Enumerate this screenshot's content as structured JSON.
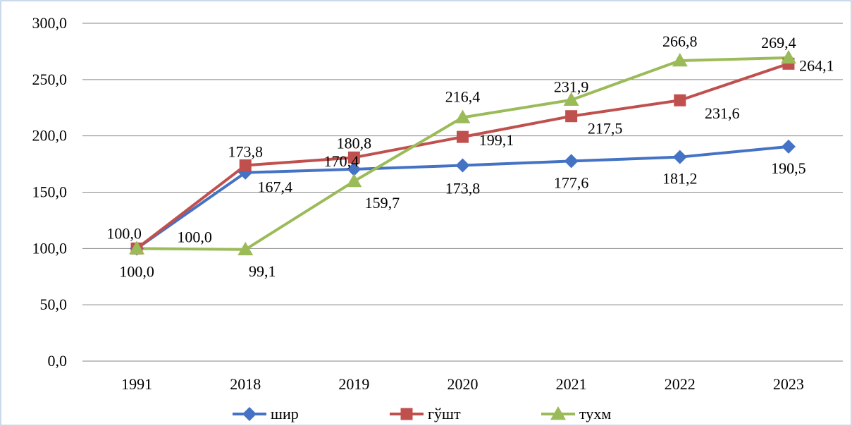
{
  "chart_data": {
    "type": "line",
    "title": "",
    "xlabel": "",
    "ylabel": "",
    "categories": [
      "1991",
      "2018",
      "2019",
      "2020",
      "2021",
      "2022",
      "2023"
    ],
    "ylim": [
      0,
      300
    ],
    "yticks": [
      "0,0",
      "50,0",
      "100,0",
      "150,0",
      "200,0",
      "250,0",
      "300,0"
    ],
    "grid": true,
    "legend_position": "bottom",
    "series": [
      {
        "name": "шир",
        "color": "#4472C4",
        "marker": "diamond",
        "values": [
          100.0,
          167.4,
          170.4,
          173.8,
          177.6,
          181.2,
          190.5
        ],
        "labels": [
          "100,0",
          "167,4",
          "170,4",
          "173,8",
          "177,6",
          "181,2",
          "190,5"
        ]
      },
      {
        "name": "гўшт",
        "color": "#C0504D",
        "marker": "square",
        "values": [
          100.0,
          173.8,
          180.8,
          199.1,
          217.5,
          231.6,
          264.1
        ],
        "labels": [
          "100,0",
          "173,8",
          "180,8",
          "199,1",
          "217,5",
          "231,6",
          "264,1"
        ]
      },
      {
        "name": "тухм",
        "color": "#9BBB59",
        "marker": "triangle",
        "values": [
          100.0,
          99.1,
          159.7,
          216.4,
          231.9,
          266.8,
          269.4
        ],
        "labels": [
          "100,0",
          "99,1",
          "159,7",
          "216,4",
          "231,9",
          "266,8",
          "269,4"
        ]
      }
    ]
  }
}
